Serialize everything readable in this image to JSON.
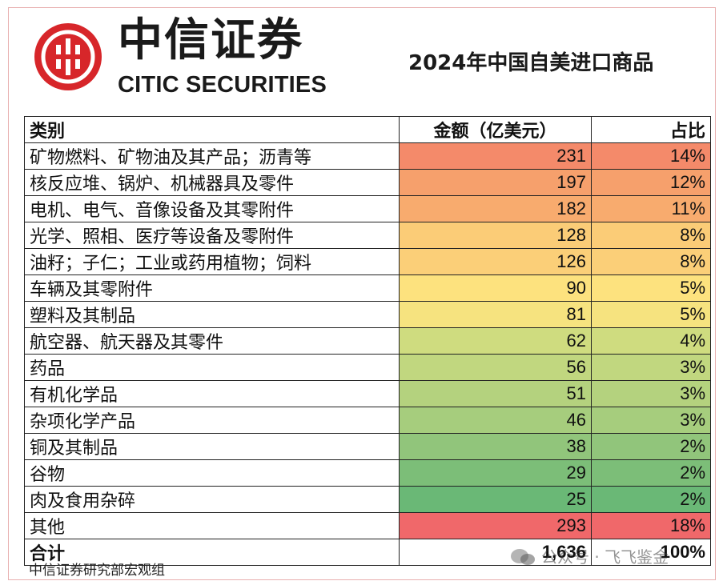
{
  "header": {
    "brand_cn": "中信证券",
    "brand_en": "CITIC SECURITIES",
    "title": "2024年中国自美进口商品"
  },
  "table": {
    "columns": [
      "类别",
      "金额（亿美元）",
      "占比"
    ],
    "rows": [
      {
        "category": "矿物燃料、矿物油及其产品；沥青等",
        "amount": "231",
        "share": "14%",
        "color": "#f48a6a"
      },
      {
        "category": "核反应堆、锅炉、机械器具及零件",
        "amount": "197",
        "share": "12%",
        "color": "#f6a06c"
      },
      {
        "category": "电机、电气、音像设备及其零附件",
        "amount": "182",
        "share": "11%",
        "color": "#f8ab6e"
      },
      {
        "category": "光学、照相、医疗等设备及零附件",
        "amount": "128",
        "share": "8%",
        "color": "#fbcc77"
      },
      {
        "category": "油籽；子仁；工业或药用植物；饲料",
        "amount": "126",
        "share": "8%",
        "color": "#fbcf78"
      },
      {
        "category": "车辆及其零附件",
        "amount": "90",
        "share": "5%",
        "color": "#fde27e"
      },
      {
        "category": "塑料及其制品",
        "amount": "81",
        "share": "5%",
        "color": "#f6e37f"
      },
      {
        "category": "航空器、航天器及其零件",
        "amount": "62",
        "share": "4%",
        "color": "#cfdc7f"
      },
      {
        "category": "药品",
        "amount": "56",
        "share": "3%",
        "color": "#c1d77f"
      },
      {
        "category": "有机化学品",
        "amount": "51",
        "share": "3%",
        "color": "#b4d27e"
      },
      {
        "category": "杂项化学产品",
        "amount": "46",
        "share": "3%",
        "color": "#a6cd7d"
      },
      {
        "category": "铜及其制品",
        "amount": "38",
        "share": "2%",
        "color": "#91c57b"
      },
      {
        "category": "谷物",
        "amount": "29",
        "share": "2%",
        "color": "#7cbe78"
      },
      {
        "category": "肉及食用杂碎",
        "amount": "25",
        "share": "2%",
        "color": "#6ab876"
      },
      {
        "category": "其他",
        "amount": "293",
        "share": "18%",
        "color": "#f0686a"
      }
    ],
    "total": {
      "category": "合计",
      "amount": "1,636",
      "share": "100%"
    }
  },
  "footer": {
    "source": "中信证券研究部宏观组",
    "watermark": "公众号 · 飞飞鉴金"
  }
}
